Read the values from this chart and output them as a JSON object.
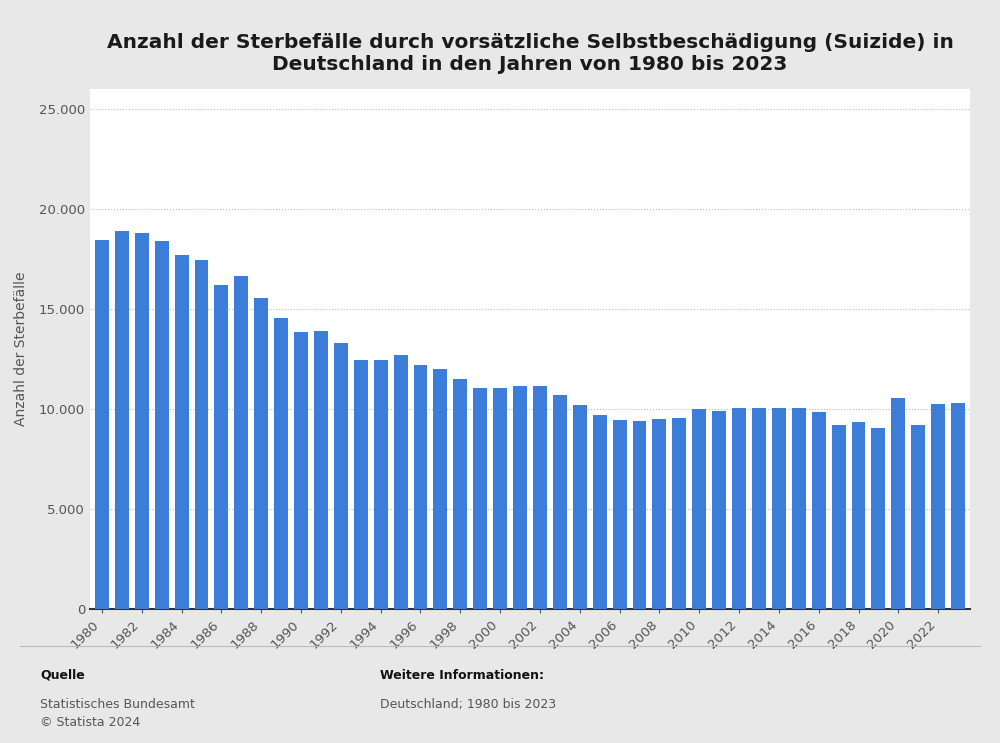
{
  "title": "Anzahl der Sterbefälle durch vorsätzliche Selbstbeschädigung (Suizide) in\nDeutschland in den Jahren von 1980 bis 2023",
  "ylabel": "Anzahl der Sterbefälle",
  "years": [
    1980,
    1981,
    1982,
    1983,
    1984,
    1985,
    1986,
    1987,
    1988,
    1989,
    1990,
    1991,
    1992,
    1993,
    1994,
    1995,
    1996,
    1997,
    1998,
    1999,
    2000,
    2001,
    2002,
    2003,
    2004,
    2005,
    2006,
    2007,
    2008,
    2009,
    2010,
    2011,
    2012,
    2013,
    2014,
    2015,
    2016,
    2017,
    2018,
    2019,
    2020,
    2021,
    2022,
    2023
  ],
  "values": [
    18450,
    18908,
    18830,
    18396,
    17710,
    17483,
    16193,
    16663,
    15540,
    14582,
    13866,
    13894,
    13303,
    12467,
    12470,
    12703,
    12187,
    12016,
    11512,
    11059,
    11065,
    11157,
    11163,
    10692,
    10201,
    9696,
    9437,
    9402,
    9516,
    9571,
    10021,
    9890,
    10076,
    10076,
    10041,
    10078,
    9838,
    9235,
    9386,
    9041,
    10578,
    9206,
    10269,
    10300
  ],
  "bar_color": "#3b7dd8",
  "background_color": "#e8e8e8",
  "plot_background_color": "#ffffff",
  "ylim": [
    0,
    26000
  ],
  "yticks": [
    0,
    5000,
    10000,
    15000,
    20000,
    25000
  ],
  "ytick_labels": [
    "0",
    "5.000",
    "10.000",
    "15.000",
    "20.000",
    "25.000"
  ],
  "source_label": "Quelle",
  "source_body": "Statistisches Bundesamt\n© Statista 2024",
  "info_label": "Weitere Informationen:",
  "info_body": "Deutschland; 1980 bis 2023",
  "title_fontsize": 14.5,
  "axis_label_fontsize": 10,
  "tick_fontsize": 9.5,
  "footer_fontsize": 9
}
